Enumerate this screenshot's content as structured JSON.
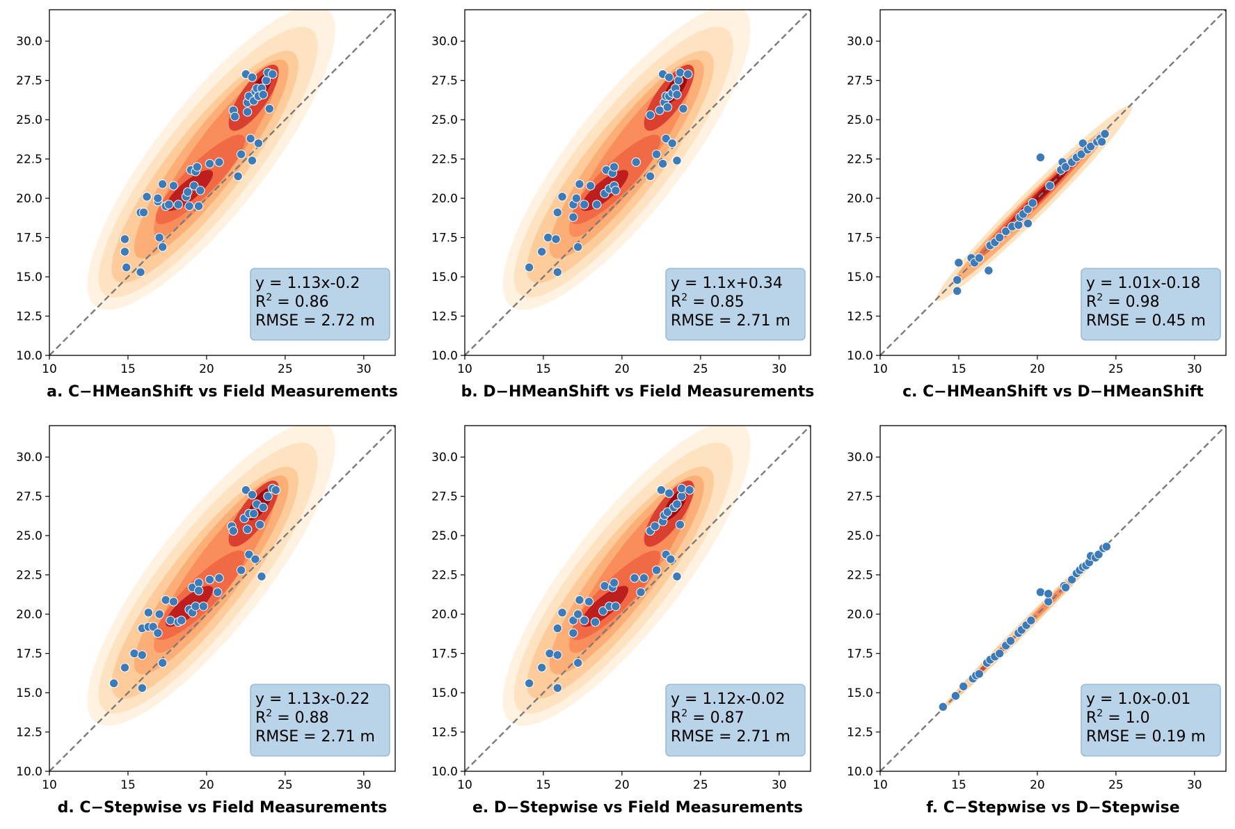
{
  "figure": {
    "colors": {
      "point_fill": "#3d7ab8",
      "point_edge": "#ffffff",
      "diagonal": "#7a7a7a",
      "stat_box_fill": "#b9d3e8",
      "stat_box_edge": "#8fb3d3",
      "density_levels": [
        "#fff2e0",
        "#fee3c2",
        "#fdcc9a",
        "#fcae77",
        "#f98d5b",
        "#ef6a45",
        "#da4030",
        "#bd1e1e",
        "#9e0b0f"
      ]
    }
  },
  "chart_data": [
    {
      "type": "scatter",
      "id": "a",
      "title": "a.  C−HMeanShift vs Field Measurements",
      "xlim": [
        10,
        32
      ],
      "ylim": [
        10,
        32
      ],
      "xticks": [
        "10",
        "15",
        "20",
        "25",
        "30"
      ],
      "yticks": [
        "10.0",
        "12.5",
        "15.0",
        "17.5",
        "20.0",
        "22.5",
        "25.0",
        "27.5",
        "30.0"
      ],
      "xlabel": "",
      "ylabel": "",
      "grid": false,
      "reference_line": "y = x",
      "density": "wide",
      "stats": {
        "equation": "y = 1.13x-0.2",
        "r2_prefix": "R",
        "r2_sup": "2",
        "r2_value": " = 0.86",
        "rmse": "RMSE = 2.72 m"
      },
      "points": [
        [
          14.8,
          17.4
        ],
        [
          14.8,
          16.6
        ],
        [
          14.9,
          15.6
        ],
        [
          15.8,
          15.3
        ],
        [
          15.8,
          19.1
        ],
        [
          16.0,
          19.1
        ],
        [
          16.2,
          20.1
        ],
        [
          16.9,
          19.8
        ],
        [
          16.9,
          20.0
        ],
        [
          17.0,
          17.5
        ],
        [
          17.2,
          16.9
        ],
        [
          17.2,
          20.9
        ],
        [
          17.4,
          19.5
        ],
        [
          17.6,
          19.6
        ],
        [
          17.9,
          20.8
        ],
        [
          18.2,
          19.6
        ],
        [
          18.7,
          20.1
        ],
        [
          18.8,
          20.4
        ],
        [
          18.9,
          19.5
        ],
        [
          19.0,
          21.8
        ],
        [
          19.2,
          20.8
        ],
        [
          19.3,
          21.7
        ],
        [
          19.4,
          22.0
        ],
        [
          19.5,
          19.5
        ],
        [
          19.6,
          20.5
        ],
        [
          20.2,
          22.2
        ],
        [
          20.8,
          22.3
        ],
        [
          21.7,
          25.6
        ],
        [
          21.8,
          25.2
        ],
        [
          22.0,
          21.4
        ],
        [
          22.2,
          22.8
        ],
        [
          22.5,
          27.9
        ],
        [
          22.6,
          26.1
        ],
        [
          22.6,
          25.5
        ],
        [
          22.7,
          26.5
        ],
        [
          22.8,
          23.8
        ],
        [
          22.9,
          22.4
        ],
        [
          22.9,
          27.7
        ],
        [
          23.0,
          26.2
        ],
        [
          23.1,
          26.8
        ],
        [
          23.2,
          27.0
        ],
        [
          23.3,
          26.5
        ],
        [
          23.3,
          23.5
        ],
        [
          23.5,
          27.0
        ],
        [
          23.6,
          26.6
        ],
        [
          23.8,
          27.5
        ],
        [
          23.9,
          28.0
        ],
        [
          24.0,
          25.7
        ],
        [
          24.2,
          27.9
        ]
      ]
    },
    {
      "type": "scatter",
      "id": "b",
      "title": "b.  D−HMeanShift vs Field Measurements",
      "xlim": [
        10,
        32
      ],
      "ylim": [
        10,
        32
      ],
      "xticks": [
        "10",
        "15",
        "20",
        "25",
        "30"
      ],
      "yticks": [
        "10.0",
        "12.5",
        "15.0",
        "17.5",
        "20.0",
        "22.5",
        "25.0",
        "27.5",
        "30.0"
      ],
      "xlabel": "",
      "ylabel": "",
      "grid": false,
      "reference_line": "y = x",
      "density": "wide",
      "stats": {
        "equation": "y = 1.1x+0.34",
        "r2_prefix": "R",
        "r2_sup": "2",
        "r2_value": " = 0.85",
        "rmse": "RMSE = 2.71 m"
      },
      "points": [
        [
          14.1,
          15.6
        ],
        [
          14.9,
          16.6
        ],
        [
          15.3,
          17.5
        ],
        [
          15.8,
          17.4
        ],
        [
          15.9,
          15.3
        ],
        [
          15.9,
          19.1
        ],
        [
          16.2,
          20.1
        ],
        [
          16.9,
          19.6
        ],
        [
          16.9,
          18.8
        ],
        [
          17.1,
          20.0
        ],
        [
          17.2,
          16.9
        ],
        [
          17.3,
          20.9
        ],
        [
          17.6,
          19.6
        ],
        [
          18.0,
          20.8
        ],
        [
          18.4,
          19.6
        ],
        [
          18.9,
          20.3
        ],
        [
          19.0,
          21.8
        ],
        [
          19.2,
          20.6
        ],
        [
          19.4,
          21.6
        ],
        [
          19.5,
          20.8
        ],
        [
          19.5,
          22.0
        ],
        [
          19.6,
          20.5
        ],
        [
          20.9,
          22.3
        ],
        [
          21.8,
          21.4
        ],
        [
          21.8,
          25.3
        ],
        [
          22.2,
          22.8
        ],
        [
          22.4,
          25.6
        ],
        [
          22.6,
          27.9
        ],
        [
          22.6,
          22.2
        ],
        [
          22.7,
          26.1
        ],
        [
          22.8,
          23.8
        ],
        [
          22.8,
          26.5
        ],
        [
          22.9,
          25.8
        ],
        [
          23.0,
          26.5
        ],
        [
          23.0,
          27.7
        ],
        [
          23.2,
          26.7
        ],
        [
          23.2,
          23.5
        ],
        [
          23.4,
          27.0
        ],
        [
          23.5,
          22.4
        ],
        [
          23.5,
          26.6
        ],
        [
          23.6,
          27.5
        ],
        [
          23.7,
          28.0
        ],
        [
          23.9,
          25.7
        ],
        [
          24.2,
          27.9
        ]
      ]
    },
    {
      "type": "scatter",
      "id": "c",
      "title": "c.  C−HMeanShift vs D−HMeanShift",
      "xlim": [
        10,
        32
      ],
      "ylim": [
        10,
        32
      ],
      "xticks": [
        "10",
        "15",
        "20",
        "25",
        "30"
      ],
      "yticks": [
        "10.0",
        "12.5",
        "15.0",
        "17.5",
        "20.0",
        "22.5",
        "25.0",
        "27.5",
        "30.0"
      ],
      "xlabel": "",
      "ylabel": "",
      "grid": false,
      "reference_line": "y = x",
      "density": "narrow",
      "stats": {
        "equation": "y = 1.01x-0.18",
        "r2_prefix": "R",
        "r2_sup": "2",
        "r2_value": " = 0.98",
        "rmse": "RMSE = 0.45 m"
      },
      "points": [
        [
          14.9,
          14.1
        ],
        [
          14.9,
          14.8
        ],
        [
          15.0,
          15.9
        ],
        [
          15.8,
          16.2
        ],
        [
          16.0,
          15.9
        ],
        [
          16.3,
          16.2
        ],
        [
          16.9,
          15.4
        ],
        [
          17.0,
          17.0
        ],
        [
          17.3,
          17.2
        ],
        [
          17.6,
          17.5
        ],
        [
          18.0,
          17.9
        ],
        [
          18.4,
          18.2
        ],
        [
          18.8,
          18.3
        ],
        [
          18.9,
          18.8
        ],
        [
          19.1,
          19.0
        ],
        [
          19.4,
          19.3
        ],
        [
          19.4,
          18.4
        ],
        [
          19.7,
          19.7
        ],
        [
          20.2,
          22.6
        ],
        [
          20.8,
          20.8
        ],
        [
          21.5,
          21.8
        ],
        [
          21.6,
          22.3
        ],
        [
          21.8,
          22.0
        ],
        [
          22.2,
          22.3
        ],
        [
          22.5,
          22.6
        ],
        [
          22.8,
          22.8
        ],
        [
          22.9,
          23.5
        ],
        [
          23.2,
          23.1
        ],
        [
          23.4,
          23.3
        ],
        [
          23.8,
          23.6
        ],
        [
          24.0,
          23.8
        ],
        [
          24.1,
          23.6
        ],
        [
          24.3,
          24.1
        ]
      ]
    },
    {
      "type": "scatter",
      "id": "d",
      "title": "d.  C−Stepwise vs Field Measurements",
      "xlim": [
        10,
        32
      ],
      "ylim": [
        10,
        32
      ],
      "xticks": [
        "10",
        "15",
        "20",
        "25",
        "30"
      ],
      "yticks": [
        "10.0",
        "12.5",
        "15.0",
        "17.5",
        "20.0",
        "22.5",
        "25.0",
        "27.5",
        "30.0"
      ],
      "xlabel": "",
      "ylabel": "",
      "grid": false,
      "reference_line": "y = x",
      "density": "wide",
      "stats": {
        "equation": "y = 1.13x-0.22",
        "r2_prefix": "R",
        "r2_sup": "2",
        "r2_value": " = 0.88",
        "rmse": "RMSE = 2.71 m"
      },
      "points": [
        [
          14.1,
          15.6
        ],
        [
          14.8,
          16.6
        ],
        [
          15.4,
          17.5
        ],
        [
          15.9,
          17.4
        ],
        [
          15.9,
          15.3
        ],
        [
          15.9,
          19.1
        ],
        [
          16.3,
          20.1
        ],
        [
          16.3,
          19.2
        ],
        [
          16.6,
          19.2
        ],
        [
          16.9,
          18.8
        ],
        [
          17.0,
          20.0
        ],
        [
          17.2,
          16.9
        ],
        [
          17.4,
          20.9
        ],
        [
          17.7,
          19.6
        ],
        [
          17.9,
          20.8
        ],
        [
          18.2,
          19.5
        ],
        [
          18.4,
          19.6
        ],
        [
          18.9,
          20.3
        ],
        [
          19.1,
          20.1
        ],
        [
          19.1,
          21.7
        ],
        [
          19.3,
          20.5
        ],
        [
          19.5,
          22.0
        ],
        [
          19.5,
          21.5
        ],
        [
          19.8,
          20.5
        ],
        [
          20.2,
          22.2
        ],
        [
          20.7,
          21.4
        ],
        [
          20.8,
          22.3
        ],
        [
          21.6,
          25.6
        ],
        [
          21.7,
          25.3
        ],
        [
          22.2,
          22.8
        ],
        [
          22.4,
          26.1
        ],
        [
          22.5,
          27.9
        ],
        [
          22.6,
          25.4
        ],
        [
          22.7,
          23.8
        ],
        [
          22.7,
          26.4
        ],
        [
          22.9,
          27.6
        ],
        [
          23.0,
          26.4
        ],
        [
          23.1,
          23.5
        ],
        [
          23.2,
          27.0
        ],
        [
          23.4,
          25.7
        ],
        [
          23.5,
          22.4
        ],
        [
          23.6,
          26.8
        ],
        [
          23.9,
          27.5
        ],
        [
          24.2,
          28.0
        ],
        [
          24.4,
          27.9
        ]
      ]
    },
    {
      "type": "scatter",
      "id": "e",
      "title": "e.  D−Stepwise vs Field Measurements",
      "xlim": [
        10,
        32
      ],
      "ylim": [
        10,
        32
      ],
      "xticks": [
        "10",
        "15",
        "20",
        "25",
        "30"
      ],
      "yticks": [
        "10.0",
        "12.5",
        "15.0",
        "17.5",
        "20.0",
        "22.5",
        "25.0",
        "27.5",
        "30.0"
      ],
      "xlabel": "",
      "ylabel": "",
      "grid": false,
      "reference_line": "y = x",
      "density": "wide",
      "stats": {
        "equation": "y = 1.12x-0.02",
        "r2_prefix": "R",
        "r2_sup": "2",
        "r2_value": " = 0.87",
        "rmse": "RMSE = 2.71 m"
      },
      "points": [
        [
          14.1,
          15.6
        ],
        [
          14.9,
          16.6
        ],
        [
          15.4,
          17.5
        ],
        [
          15.9,
          17.4
        ],
        [
          15.9,
          15.3
        ],
        [
          15.9,
          19.1
        ],
        [
          16.2,
          20.1
        ],
        [
          16.9,
          19.6
        ],
        [
          16.9,
          18.8
        ],
        [
          17.2,
          20.0
        ],
        [
          17.2,
          16.9
        ],
        [
          17.3,
          20.9
        ],
        [
          17.6,
          19.6
        ],
        [
          17.9,
          20.8
        ],
        [
          18.3,
          19.5
        ],
        [
          18.8,
          20.2
        ],
        [
          18.9,
          21.8
        ],
        [
          19.2,
          20.5
        ],
        [
          19.4,
          21.7
        ],
        [
          19.5,
          22.0
        ],
        [
          19.6,
          20.5
        ],
        [
          20.8,
          22.3
        ],
        [
          21.2,
          21.4
        ],
        [
          21.4,
          22.3
        ],
        [
          21.8,
          25.3
        ],
        [
          22.1,
          25.6
        ],
        [
          22.2,
          22.8
        ],
        [
          22.5,
          27.9
        ],
        [
          22.6,
          25.9
        ],
        [
          22.7,
          26.3
        ],
        [
          22.8,
          23.8
        ],
        [
          22.9,
          26.5
        ],
        [
          23.0,
          27.7
        ],
        [
          23.1,
          23.5
        ],
        [
          23.3,
          26.8
        ],
        [
          23.5,
          22.4
        ],
        [
          23.5,
          27.0
        ],
        [
          23.7,
          25.7
        ],
        [
          23.8,
          27.5
        ],
        [
          23.8,
          28.0
        ],
        [
          24.3,
          27.9
        ]
      ]
    },
    {
      "type": "scatter",
      "id": "f",
      "title": "f.  C−Stepwise vs D−Stepwise",
      "xlim": [
        10,
        32
      ],
      "ylim": [
        10,
        32
      ],
      "xticks": [
        "10",
        "15",
        "20",
        "25",
        "30"
      ],
      "yticks": [
        "10.0",
        "12.5",
        "15.0",
        "17.5",
        "20.0",
        "22.5",
        "25.0",
        "27.5",
        "30.0"
      ],
      "xlabel": "",
      "ylabel": "",
      "grid": false,
      "reference_line": "y = x",
      "density": "thin",
      "stats": {
        "equation": "y = 1.0x-0.01",
        "r2_prefix": "R",
        "r2_sup": "2",
        "r2_value": " = 1.0",
        "rmse": "RMSE = 0.19 m"
      },
      "points": [
        [
          14.0,
          14.1
        ],
        [
          14.8,
          14.8
        ],
        [
          15.3,
          15.4
        ],
        [
          15.9,
          15.9
        ],
        [
          16.1,
          16.1
        ],
        [
          16.3,
          16.2
        ],
        [
          16.8,
          16.9
        ],
        [
          17.0,
          17.1
        ],
        [
          17.3,
          17.3
        ],
        [
          17.6,
          17.5
        ],
        [
          18.0,
          18.0
        ],
        [
          18.3,
          18.3
        ],
        [
          18.8,
          18.8
        ],
        [
          19.0,
          19.0
        ],
        [
          19.3,
          19.3
        ],
        [
          19.6,
          19.6
        ],
        [
          20.2,
          21.4
        ],
        [
          20.7,
          20.8
        ],
        [
          20.7,
          21.3
        ],
        [
          21.7,
          21.8
        ],
        [
          21.8,
          21.7
        ],
        [
          22.2,
          22.2
        ],
        [
          22.5,
          22.6
        ],
        [
          22.7,
          22.8
        ],
        [
          22.9,
          23.0
        ],
        [
          23.1,
          23.1
        ],
        [
          23.3,
          23.3
        ],
        [
          23.4,
          23.7
        ],
        [
          23.7,
          23.6
        ],
        [
          23.9,
          23.8
        ],
        [
          24.2,
          24.2
        ],
        [
          24.4,
          24.3
        ]
      ]
    }
  ]
}
